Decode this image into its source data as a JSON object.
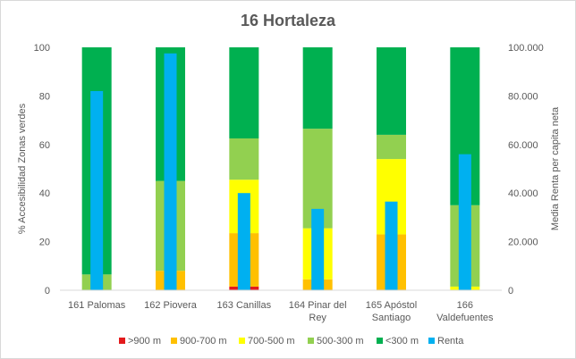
{
  "chart_data": {
    "type": "bar",
    "title": "16 Hortaleza",
    "ylabel": "% Accesibilidad Zonas verdes",
    "y2label": "Media Renta per capita neta",
    "ylim": [
      0,
      100
    ],
    "y2lim": [
      0,
      100000
    ],
    "yticks": [
      "0",
      "20",
      "40",
      "60",
      "80",
      "100"
    ],
    "y2ticks": [
      "0",
      "20.000",
      "40.000",
      "60.000",
      "80.000",
      "100.000"
    ],
    "categories": [
      [
        "161 Palomas"
      ],
      [
        "162 Piovera"
      ],
      [
        "163 Canillas"
      ],
      [
        "164 Pinar del",
        "Rey"
      ],
      [
        "165 Apóstol",
        "Santiago"
      ],
      [
        "166",
        "Valdefuentes"
      ]
    ],
    "stacked_series": [
      {
        "name": ">900 m",
        "color": "#e31a1c",
        "values": [
          0,
          0,
          1.5,
          0,
          0,
          0
        ]
      },
      {
        "name": "900-700 m",
        "color": "#ffc000",
        "values": [
          0,
          8,
          22,
          4.5,
          23,
          0
        ]
      },
      {
        "name": "700-500 m",
        "color": "#ffff00",
        "values": [
          0,
          0,
          22,
          21,
          31,
          1.5
        ]
      },
      {
        "name": "500-300 m",
        "color": "#92d050",
        "values": [
          6.5,
          37,
          17,
          41,
          10,
          33.5
        ]
      },
      {
        "name": "<300 m",
        "color": "#00b050",
        "values": [
          93.5,
          55,
          37.5,
          33.5,
          36,
          65
        ]
      }
    ],
    "secondary_series": {
      "name": "Renta",
      "color": "#00b0f0",
      "axis": "right",
      "values": [
        82000,
        97500,
        40000,
        33500,
        36500,
        56000
      ]
    },
    "legend_position": "bottom",
    "grid": false
  }
}
